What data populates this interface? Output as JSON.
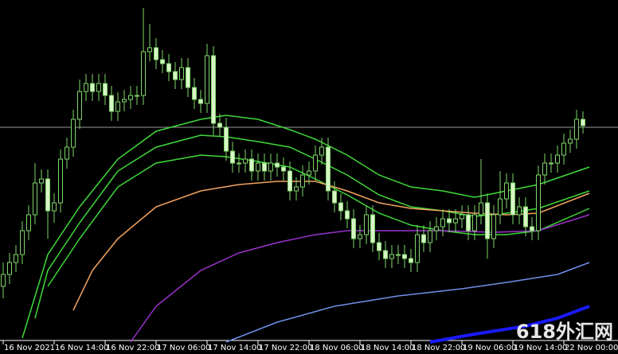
{
  "chart_data": {
    "type": "candlestick",
    "xlim": [
      -0.5,
      96.5
    ],
    "ylim": [
      0,
      430
    ],
    "xticks": [
      {
        "value": 0,
        "label": "16 Nov 2021"
      },
      {
        "value": 8,
        "label": "16 Nov 14:00"
      },
      {
        "value": 16,
        "label": "16 Nov 22:00"
      },
      {
        "value": 24,
        "label": "17 Nov 06:00"
      },
      {
        "value": 32,
        "label": "17 Nov 14:00"
      },
      {
        "value": 40,
        "label": "17 Nov 22:00"
      },
      {
        "value": 48,
        "label": "18 Nov 06:00"
      },
      {
        "value": 56,
        "label": "18 Nov 14:00"
      },
      {
        "value": 64,
        "label": "18 Nov 22:00"
      },
      {
        "value": 72,
        "label": "19 Nov 06:00"
      },
      {
        "value": 80,
        "label": "19 Nov 14:00"
      },
      {
        "value": 88,
        "label": "22 Nov 00:00"
      }
    ],
    "up_color": "#000000",
    "down_color": "#d8f5c8",
    "wick_color": "#7fd66a",
    "price_line": 270,
    "price_line_color": "#9a9a9a",
    "open": [
      70,
      85,
      100,
      110,
      140,
      160,
      200,
      205,
      165,
      175,
      230,
      245,
      280,
      315,
      325,
      315,
      325,
      310,
      290,
      302,
      305,
      310,
      310,
      365,
      370,
      355,
      350,
      340,
      330,
      345,
      320,
      305,
      300,
      360,
      275,
      270,
      240,
      225,
      225,
      230,
      215,
      225,
      215,
      225,
      220,
      215,
      190,
      195,
      210,
      215,
      235,
      245,
      190,
      175,
      165,
      155,
      130,
      135,
      160,
      125,
      115,
      105,
      110,
      110,
      105,
      100,
      135,
      125,
      140,
      145,
      155,
      150,
      155,
      160,
      140,
      160,
      175,
      130,
      160,
      180,
      200,
      160,
      170,
      145,
      140,
      210,
      225,
      225,
      235,
      250,
      255,
      280
    ],
    "high": [
      100,
      112,
      122,
      152,
      172,
      225,
      217,
      217,
      187,
      242,
      257,
      292,
      330,
      337,
      337,
      337,
      337,
      322,
      314,
      317,
      322,
      322,
      420,
      400,
      382,
      367,
      362,
      352,
      357,
      357,
      332,
      317,
      375,
      372,
      287,
      282,
      252,
      237,
      242,
      242,
      237,
      237,
      237,
      237,
      232,
      227,
      207,
      222,
      227,
      247,
      257,
      257,
      202,
      187,
      177,
      167,
      147,
      172,
      172,
      137,
      127,
      122,
      122,
      122,
      117,
      147,
      147,
      152,
      157,
      167,
      167,
      167,
      172,
      172,
      172,
      230,
      187,
      172,
      215,
      212,
      212,
      182,
      182,
      157,
      222,
      237,
      237,
      247,
      262,
      267,
      292,
      290
    ],
    "low": [
      55,
      73,
      88,
      98,
      128,
      148,
      188,
      130,
      150,
      163,
      218,
      233,
      268,
      303,
      303,
      303,
      298,
      278,
      278,
      290,
      293,
      298,
      298,
      353,
      343,
      338,
      328,
      318,
      318,
      308,
      293,
      288,
      288,
      260,
      258,
      228,
      213,
      213,
      213,
      203,
      203,
      203,
      203,
      208,
      203,
      178,
      178,
      183,
      198,
      203,
      223,
      178,
      163,
      153,
      143,
      118,
      118,
      123,
      113,
      103,
      93,
      93,
      98,
      93,
      88,
      88,
      113,
      113,
      128,
      133,
      138,
      138,
      143,
      128,
      128,
      148,
      105,
      118,
      148,
      168,
      148,
      148,
      133,
      128,
      128,
      198,
      213,
      213,
      223,
      238,
      243,
      262
    ],
    "close": [
      85,
      100,
      110,
      140,
      160,
      200,
      205,
      165,
      175,
      230,
      245,
      280,
      315,
      325,
      315,
      325,
      310,
      290,
      302,
      305,
      310,
      310,
      365,
      370,
      355,
      350,
      340,
      330,
      345,
      320,
      305,
      300,
      360,
      275,
      270,
      240,
      225,
      225,
      230,
      215,
      225,
      215,
      225,
      220,
      215,
      190,
      195,
      210,
      215,
      235,
      245,
      190,
      175,
      165,
      155,
      130,
      135,
      160,
      125,
      115,
      105,
      110,
      110,
      105,
      100,
      135,
      125,
      140,
      145,
      155,
      150,
      155,
      160,
      140,
      160,
      175,
      130,
      160,
      180,
      200,
      160,
      170,
      145,
      140,
      210,
      225,
      225,
      235,
      250,
      255,
      280,
      272
    ],
    "series": [
      {
        "color": "#3fd93a",
        "width": 1.5,
        "x": [
          3,
          7,
          12,
          18,
          24,
          31,
          35,
          40,
          45,
          49,
          54,
          59,
          64,
          69,
          74,
          79,
          84,
          92
        ],
        "values": [
          5,
          110,
          170,
          230,
          265,
          280,
          285,
          280,
          267,
          255,
          235,
          210,
          195,
          190,
          182,
          190,
          198,
          220
        ]
      },
      {
        "color": "#3fd93a",
        "width": 1.5,
        "x": [
          5,
          7,
          12,
          18,
          24,
          31,
          35,
          40,
          45,
          49,
          54,
          59,
          64,
          69,
          74,
          79,
          84,
          92
        ],
        "values": [
          30,
          90,
          150,
          215,
          245,
          260,
          258,
          252,
          245,
          230,
          210,
          185,
          170,
          165,
          158,
          162,
          168,
          190
        ]
      },
      {
        "color": "#3fd93a",
        "width": 1.5,
        "x": [
          7,
          12,
          18,
          24,
          31,
          35,
          40,
          45,
          49,
          54,
          59,
          64,
          69,
          74,
          79,
          84,
          92
        ],
        "values": [
          70,
          130,
          195,
          225,
          235,
          233,
          227,
          220,
          205,
          185,
          162,
          147,
          140,
          135,
          135,
          140,
          168
        ]
      },
      {
        "color": "#f4a460",
        "width": 1.5,
        "x": [
          11,
          14,
          18,
          24,
          31,
          37,
          43,
          49,
          54,
          59,
          64,
          69,
          74,
          79,
          84,
          92
        ],
        "values": [
          40,
          90,
          130,
          170,
          190,
          198,
          202,
          202,
          190,
          175,
          168,
          165,
          162,
          160,
          162,
          187
        ]
      },
      {
        "color": "#9932cc",
        "width": 1.5,
        "x": [
          20,
          24,
          31,
          37,
          43,
          49,
          54,
          62,
          69,
          77,
          84,
          92
        ],
        "values": [
          0,
          45,
          90,
          112,
          125,
          135,
          140,
          140,
          140,
          138,
          140,
          160
        ]
      },
      {
        "color": "#6f8fe8",
        "width": 1.5,
        "x": [
          35,
          43,
          52,
          62,
          72,
          79,
          87,
          92
        ],
        "values": [
          0,
          25,
          45,
          58,
          67,
          75,
          85,
          100
        ]
      },
      {
        "color": "#1a1aff",
        "width": 4,
        "x": [
          67,
          74,
          82,
          87,
          92
        ],
        "values": [
          0,
          10,
          20,
          30,
          45
        ]
      }
    ],
    "watermark": "618外汇网"
  }
}
